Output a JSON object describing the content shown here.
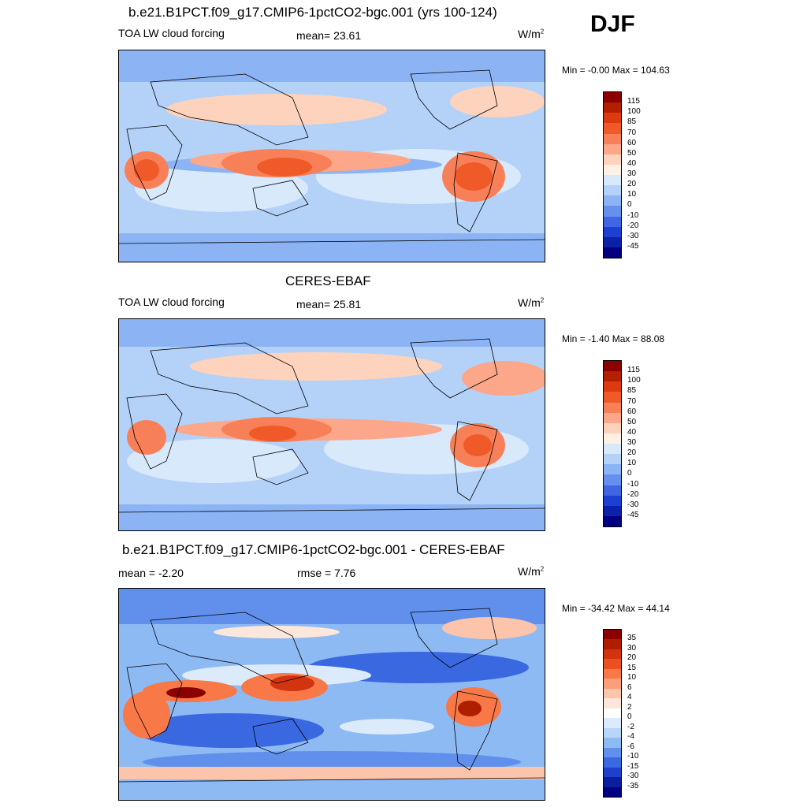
{
  "season": "DJF",
  "panels": [
    {
      "title": "b.e21.B1PCT.f09_g17.CMIP6-1pctCO2-bgc.001 (yrs 100-124)",
      "left_label": "TOA LW cloud forcing",
      "center_label": "mean=  23.61",
      "units": "W/m",
      "units_sup": "2",
      "minmax": "Min =  -0.00 Max = 104.63",
      "colorbar_levels": [
        "115",
        "100",
        "85",
        "70",
        "60",
        "50",
        "40",
        "30",
        "20",
        "10",
        "0",
        "-10",
        "-20",
        "-30",
        "-45"
      ],
      "colorbar_colors": [
        "#8b0000",
        "#b22000",
        "#dc3a10",
        "#f05a28",
        "#f88058",
        "#fca68a",
        "#fdd3bd",
        "#fff0e6",
        "#d7e9fb",
        "#b4d2f8",
        "#8cb4f5",
        "#6690ee",
        "#3f66e3",
        "#1e40d0",
        "#0d20a8",
        "#000080"
      ]
    },
    {
      "title": "CERES-EBAF",
      "left_label": "TOA LW cloud forcing",
      "center_label": "mean=  25.81",
      "units": "W/m",
      "units_sup": "2",
      "minmax": "Min =  -1.40 Max =  88.08",
      "colorbar_levels": [
        "115",
        "100",
        "85",
        "70",
        "60",
        "50",
        "40",
        "30",
        "20",
        "10",
        "0",
        "-10",
        "-20",
        "-30",
        "-45"
      ],
      "colorbar_colors": [
        "#8b0000",
        "#b22000",
        "#dc3a10",
        "#f05a28",
        "#f88058",
        "#fca68a",
        "#fdd3bd",
        "#fff0e6",
        "#d7e9fb",
        "#b4d2f8",
        "#8cb4f5",
        "#6690ee",
        "#3f66e3",
        "#1e40d0",
        "#0d20a8",
        "#000080"
      ]
    },
    {
      "title": "b.e21.B1PCT.f09_g17.CMIP6-1pctCO2-bgc.001 - CERES-EBAF",
      "left_label": "mean =  -2.20",
      "center_label": "rmse =   7.76",
      "units": "W/m",
      "units_sup": "2",
      "minmax": "Min = -34.42 Max =  44.14",
      "colorbar_levels": [
        "35",
        "30",
        "20",
        "15",
        "10",
        "6",
        "4",
        "2",
        "0",
        "-2",
        "-4",
        "-6",
        "-10",
        "-15",
        "-30",
        "-35"
      ],
      "colorbar_colors": [
        "#8b0000",
        "#b01e00",
        "#d23410",
        "#ec5020",
        "#f87848",
        "#fc9e7a",
        "#fdc4ac",
        "#fde6da",
        "#ffffff",
        "#dcebfb",
        "#b8d6f8",
        "#8ebaf4",
        "#6090ec",
        "#3a68e0",
        "#1e40cc",
        "#0a1ea0",
        "#000080"
      ]
    }
  ]
}
